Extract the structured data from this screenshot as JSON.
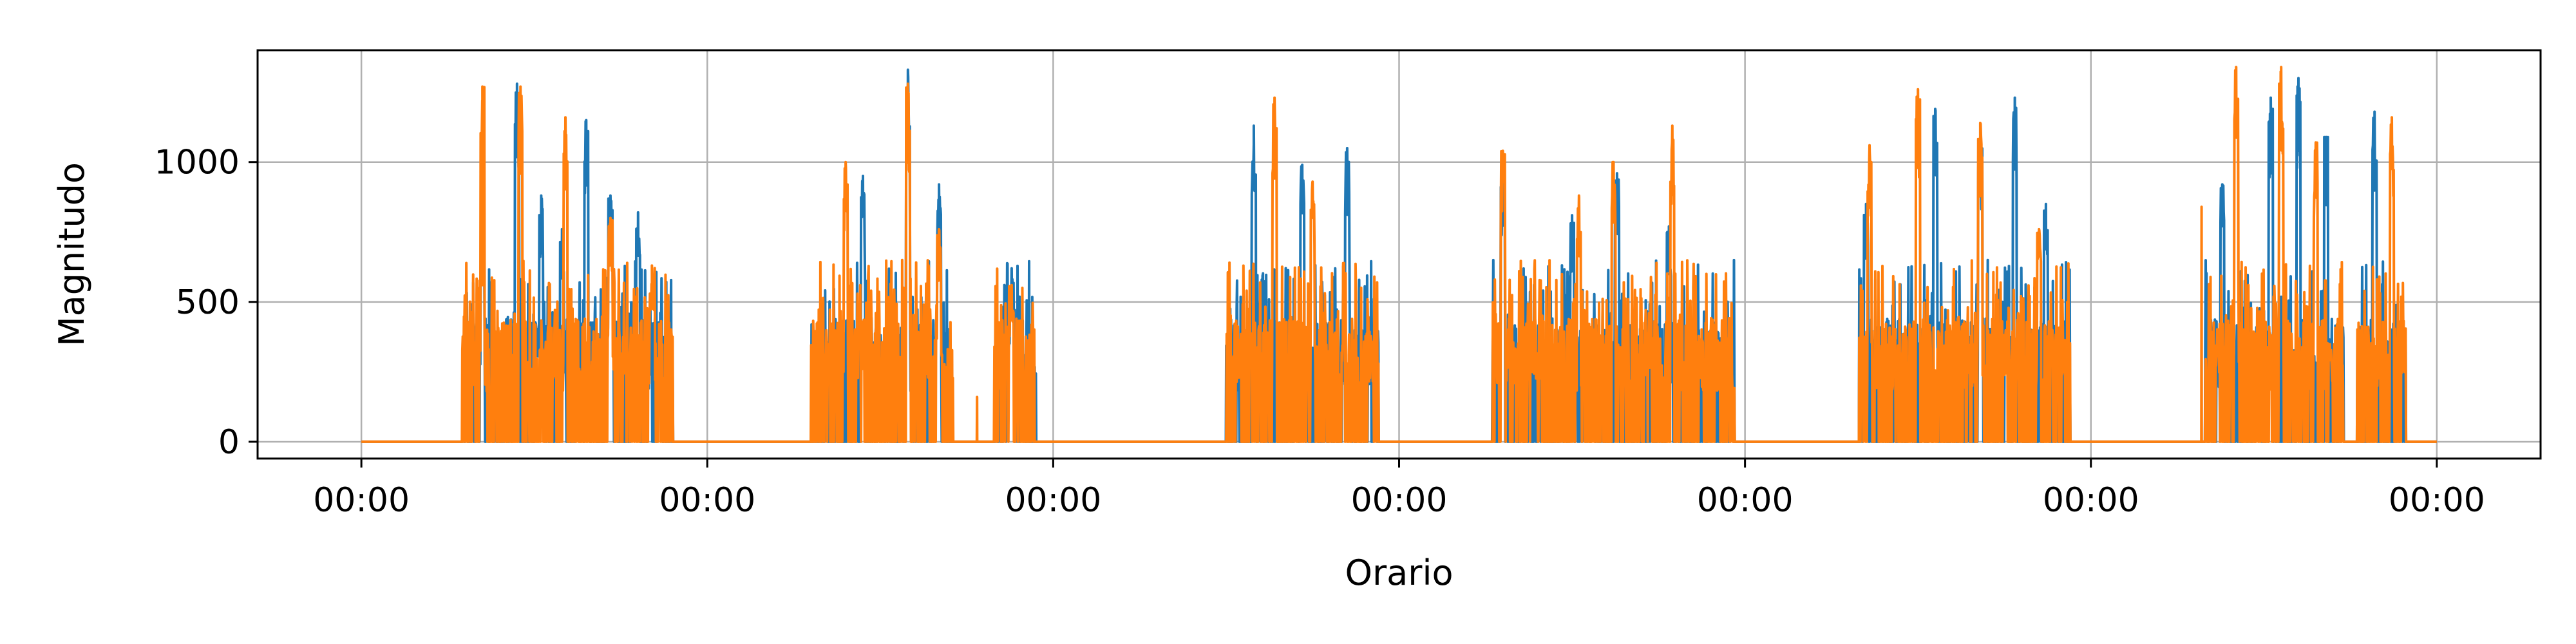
{
  "chart_data": {
    "type": "line",
    "title": "",
    "xlabel": "Orario",
    "ylabel": "Magnitudo",
    "x_tick_labels": [
      "00:00",
      "00:00",
      "00:00",
      "00:00",
      "00:00",
      "00:00",
      "00:00"
    ],
    "x_range_days": [
      0,
      6
    ],
    "xlim_days": [
      -0.3,
      6.3
    ],
    "ylim": [
      -60,
      1400
    ],
    "y_ticks": [
      0,
      500,
      1000
    ],
    "y_tick_labels": [
      "0",
      "500",
      "1000"
    ],
    "grid": true,
    "legend": "none",
    "series": [
      {
        "color": "#1f77b4",
        "activity_windows_days": [
          [
            0.29,
            0.9
          ],
          [
            1.3,
            1.7
          ],
          [
            1.83,
            1.95
          ],
          [
            2.5,
            2.94
          ],
          [
            3.27,
            3.97
          ],
          [
            4.33,
            4.94
          ],
          [
            5.33,
            5.73
          ],
          [
            5.77,
            5.91
          ]
        ],
        "peaks": [
          [
            0.35,
            690
          ],
          [
            0.45,
            1280
          ],
          [
            0.52,
            880
          ],
          [
            0.58,
            760
          ],
          [
            0.65,
            1150
          ],
          [
            0.72,
            880
          ],
          [
            0.8,
            820
          ],
          [
            1.45,
            950
          ],
          [
            1.58,
            1330
          ],
          [
            1.67,
            920
          ],
          [
            1.88,
            620
          ],
          [
            2.58,
            1130
          ],
          [
            2.72,
            990
          ],
          [
            2.85,
            1050
          ],
          [
            3.3,
            950
          ],
          [
            3.5,
            810
          ],
          [
            3.63,
            960
          ],
          [
            3.78,
            770
          ],
          [
            4.35,
            850
          ],
          [
            4.55,
            1190
          ],
          [
            4.68,
            1080
          ],
          [
            4.78,
            1230
          ],
          [
            4.87,
            850
          ],
          [
            5.38,
            920
          ],
          [
            5.52,
            1230
          ],
          [
            5.6,
            1300
          ],
          [
            5.68,
            1090
          ],
          [
            5.82,
            1180
          ]
        ]
      },
      {
        "color": "#ff7f0e",
        "activity_windows_days": [
          [
            0.29,
            0.9
          ],
          [
            1.3,
            1.71
          ],
          [
            1.83,
            1.95
          ],
          [
            2.5,
            2.94
          ],
          [
            3.27,
            3.97
          ],
          [
            4.33,
            4.94
          ],
          [
            5.33,
            5.73
          ],
          [
            5.77,
            5.91
          ]
        ],
        "peaks": [
          [
            0.35,
            560
          ],
          [
            0.35,
            1270
          ],
          [
            0.46,
            1270
          ],
          [
            0.59,
            1160
          ],
          [
            0.72,
            800
          ],
          [
            0.84,
            630
          ],
          [
            1.4,
            1000
          ],
          [
            1.58,
            1280
          ],
          [
            1.67,
            760
          ],
          [
            1.78,
            160
          ],
          [
            1.88,
            560
          ],
          [
            2.64,
            1230
          ],
          [
            2.75,
            930
          ],
          [
            3.3,
            1040
          ],
          [
            3.52,
            880
          ],
          [
            3.62,
            1000
          ],
          [
            3.79,
            1130
          ],
          [
            4.36,
            1060
          ],
          [
            4.5,
            1260
          ],
          [
            4.68,
            1140
          ],
          [
            4.85,
            760
          ],
          [
            5.32,
            840
          ],
          [
            5.42,
            1340
          ],
          [
            5.55,
            1340
          ],
          [
            5.65,
            1070
          ],
          [
            5.87,
            1160
          ]
        ]
      }
    ]
  }
}
